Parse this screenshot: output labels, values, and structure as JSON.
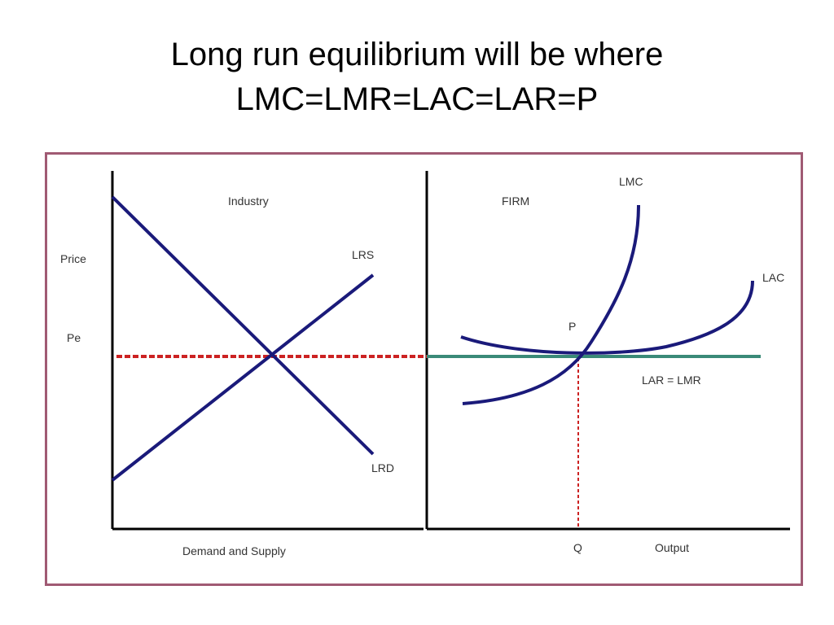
{
  "slide": {
    "title_line1": "Long run equilibrium will be where",
    "title_line2": "LMC=LMR=LAC=LAR=P"
  },
  "diagram": {
    "industry_panel": {
      "heading": "Industry",
      "y_axis_label": "Price",
      "price_level_label": "Pe",
      "x_axis_label": "Demand and Supply",
      "supply_label": "LRS",
      "demand_label": "LRD"
    },
    "firm_panel": {
      "heading": "FIRM",
      "mc_label": "LMC",
      "ac_label": "LAC",
      "point_label": "P",
      "price_line_label": "LAR = LMR",
      "quantity_label": "Q",
      "x_axis_label": "Output"
    },
    "colors": {
      "curves": "#1a1a7a",
      "guides": "#cc2222",
      "price_line": "#3a8a78",
      "axes": "#000000",
      "frame": "#a05a73"
    }
  }
}
